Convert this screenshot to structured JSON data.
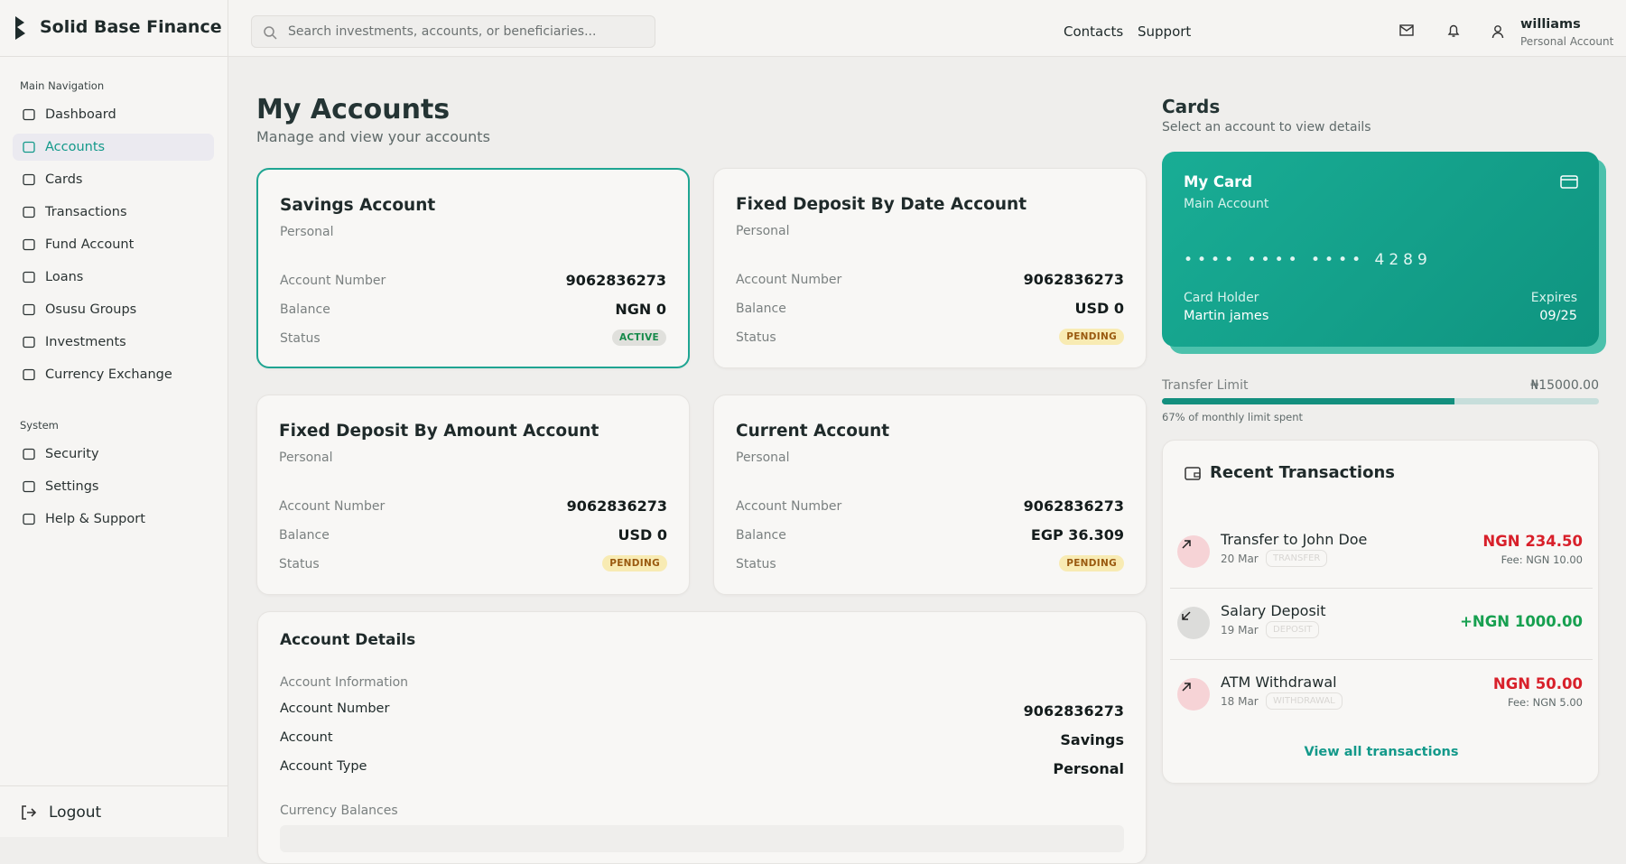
{
  "brand": "Solid Base Finance",
  "search_placeholder": "Search investments, accounts, or beneficiaries...",
  "top_links": [
    "Contacts",
    "Support"
  ],
  "user": {
    "name": "williams",
    "role": "Personal Account"
  },
  "nav": {
    "main_title": "Main Navigation",
    "main": [
      "Dashboard",
      "Accounts",
      "Cards",
      "Transactions",
      "Fund Account",
      "Loans",
      "Osusu Groups",
      "Investments",
      "Currency Exchange"
    ],
    "system_title": "System",
    "system": [
      "Security",
      "Settings",
      "Help & Support"
    ],
    "logout": "Logout"
  },
  "page": {
    "title": "My Accounts",
    "subtitle": "Manage and view your accounts"
  },
  "labels": {
    "account_number": "Account Number",
    "balance": "Balance",
    "status": "Status"
  },
  "accounts": [
    {
      "name": "Savings Account",
      "type": "Personal",
      "number": "9062836273",
      "balance": "NGN 0",
      "status": "ACTIVE"
    },
    {
      "name": "Fixed Deposit By Date Account",
      "type": "Personal",
      "number": "9062836273",
      "balance": "USD 0",
      "status": "PENDING"
    },
    {
      "name": "Fixed Deposit By Amount Account",
      "type": "Personal",
      "number": "9062836273",
      "balance": "USD 0",
      "status": "PENDING"
    },
    {
      "name": "Current Account",
      "type": "Personal",
      "number": "9062836273",
      "balance": "EGP 36.309",
      "status": "PENDING"
    }
  ],
  "details": {
    "title": "Account Details",
    "section": "Account Information",
    "rows": [
      [
        "Account Number",
        "9062836273"
      ],
      [
        "Account",
        "Savings"
      ],
      [
        "Account Type",
        "Personal"
      ]
    ],
    "currency_title": "Currency Balances"
  },
  "cards": {
    "title": "Cards",
    "subtitle": "Select an account to view details",
    "card": {
      "name": "My Card",
      "sub": "Main Account",
      "number": "•••• •••• •••• 4289",
      "holder_label": "Card Holder",
      "holder": "Martin james",
      "expires_label": "Expires",
      "expires": "09/25"
    },
    "limit": {
      "label": "Transfer Limit",
      "amount": "₦15000.00",
      "percent": 67,
      "note": "67% of monthly limit spent"
    }
  },
  "transactions": {
    "title": "Recent Transactions",
    "items": [
      {
        "name": "Transfer to John Doe",
        "date": "20 Mar",
        "tag": "TRANSFER",
        "amount": "NGN 234.50",
        "fee": "Fee: NGN 10.00",
        "direction": "out"
      },
      {
        "name": "Salary Deposit",
        "date": "19 Mar",
        "tag": "DEPOSIT",
        "amount": "+NGN 1000.00",
        "direction": "in"
      },
      {
        "name": "ATM Withdrawal",
        "date": "18 Mar",
        "tag": "WITHDRAWAL",
        "amount": "NGN 50.00",
        "fee": "Fee: NGN 5.00",
        "direction": "out"
      }
    ],
    "view_all": "View all transactions"
  }
}
